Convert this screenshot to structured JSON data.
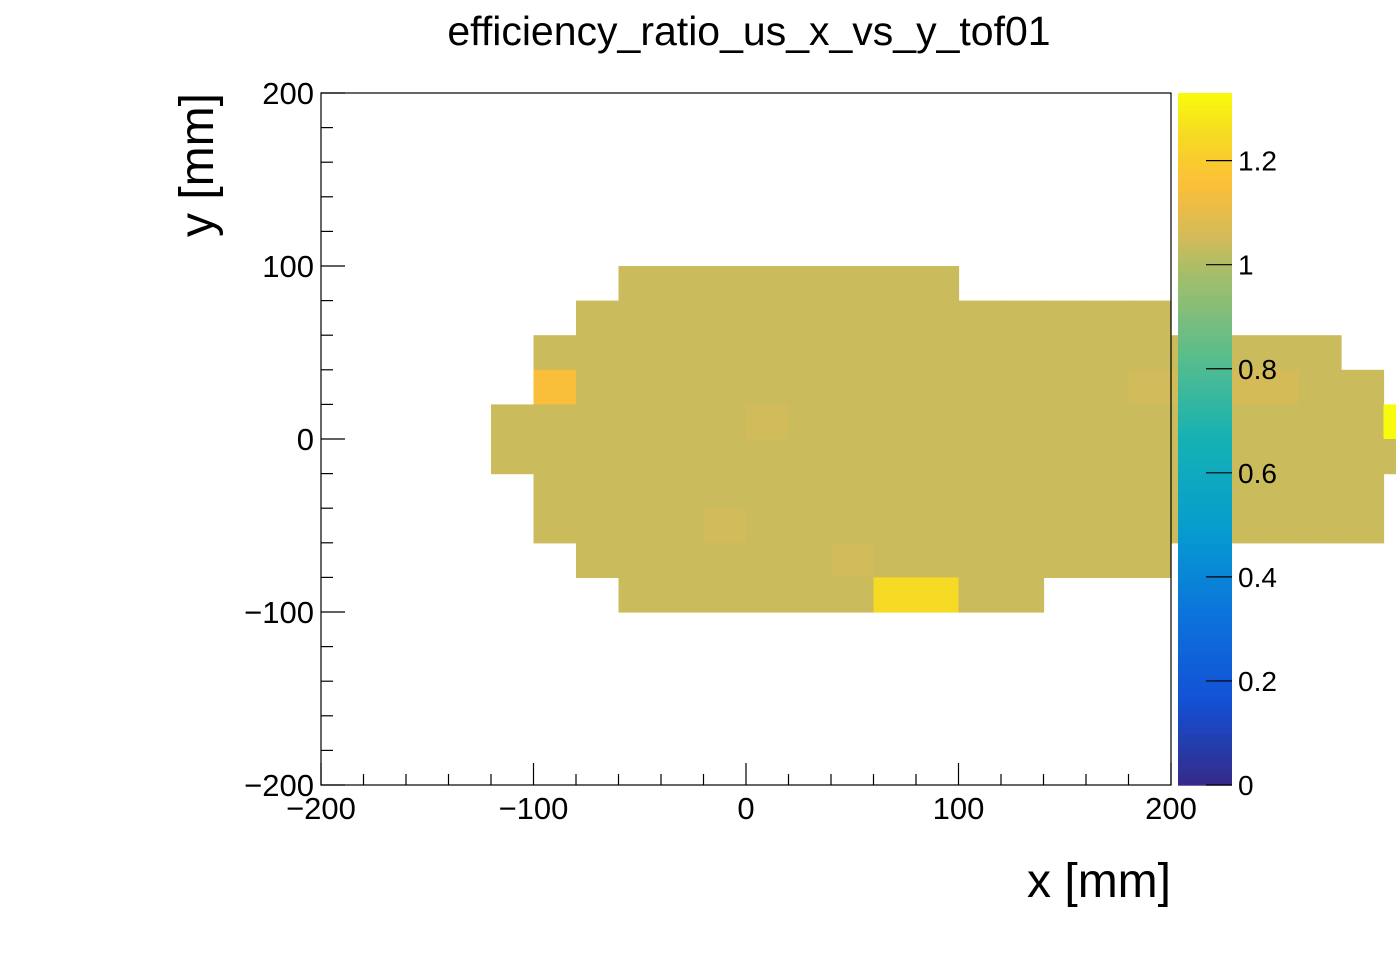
{
  "chart_data": {
    "type": "heatmap",
    "title": "efficiency_ratio_us_x_vs_y_tof01",
    "xlabel": "x [mm]",
    "ylabel": "y [mm]",
    "xlim": [
      -200,
      200
    ],
    "ylim": [
      -200,
      200
    ],
    "bin_width": 20,
    "x_ticks": [
      -200,
      -100,
      0,
      100,
      200
    ],
    "y_ticks": [
      -200,
      -100,
      0,
      100,
      200
    ],
    "x_tick_labels": [
      "−200",
      "−100",
      "0",
      "100",
      "200"
    ],
    "y_tick_labels": [
      "−200",
      "−100",
      "0",
      "100",
      "200"
    ],
    "colorbar": {
      "min": 0,
      "max": 1.33,
      "ticks": [
        0,
        0.2,
        0.4,
        0.6,
        0.8,
        1,
        1.2
      ],
      "tick_labels": [
        "0",
        "0.2",
        "0.4",
        "0.6",
        "0.8",
        "1",
        "1.2"
      ],
      "palette": "kBird"
    },
    "rows": [
      {
        "y_range": [
          80,
          100
        ],
        "x_start": -60,
        "values": [
          1.04,
          1.04,
          1.04,
          1.04,
          1.04,
          1.04,
          1.04,
          1.04
        ]
      },
      {
        "y_range": [
          60,
          80
        ],
        "x_start": -80,
        "values": [
          1.04,
          1.04,
          1.04,
          1.04,
          1.04,
          1.04,
          1.04,
          1.04,
          1.04,
          1.04,
          1.04,
          1.04,
          1.04,
          1.04
        ]
      },
      {
        "y_range": [
          40,
          60
        ],
        "x_start": -100,
        "values": [
          1.04,
          1.04,
          1.04,
          1.04,
          1.04,
          1.04,
          1.04,
          1.04,
          1.04,
          1.04,
          1.04,
          1.04,
          1.04,
          1.04,
          1.04,
          1.04,
          1.04,
          1.04,
          1.04
        ]
      },
      {
        "y_range": [
          20,
          40
        ],
        "x_start": -100,
        "values": [
          1.15,
          1.04,
          1.04,
          1.04,
          1.04,
          1.04,
          1.04,
          1.04,
          1.04,
          1.04,
          1.04,
          1.04,
          1.04,
          1.04,
          1.05,
          1.05,
          1.06,
          1.06,
          1.04,
          1.04
        ]
      },
      {
        "y_range": [
          0,
          20
        ],
        "x_start": -120,
        "values": [
          1.04,
          1.04,
          1.04,
          1.04,
          1.04,
          1.04,
          1.05,
          1.04,
          1.04,
          1.04,
          1.04,
          1.04,
          1.04,
          1.04,
          1.04,
          1.04,
          1.04,
          1.04,
          1.04,
          1.04,
          1.04,
          1.33
        ]
      },
      {
        "y_range": [
          -20,
          0
        ],
        "x_start": -120,
        "values": [
          1.04,
          1.04,
          1.04,
          1.04,
          1.04,
          1.04,
          1.04,
          1.04,
          1.04,
          1.04,
          1.04,
          1.04,
          1.04,
          1.04,
          1.04,
          1.04,
          1.04,
          1.04,
          1.04,
          1.04,
          1.04,
          1.04
        ]
      },
      {
        "y_range": [
          -40,
          -20
        ],
        "x_start": -100,
        "values": [
          1.04,
          1.04,
          1.04,
          1.04,
          1.04,
          1.04,
          1.04,
          1.04,
          1.04,
          1.04,
          1.04,
          1.04,
          1.04,
          1.04,
          1.04,
          1.04,
          1.04,
          1.04,
          1.04,
          1.04
        ]
      },
      {
        "y_range": [
          -60,
          -40
        ],
        "x_start": -100,
        "values": [
          1.04,
          1.04,
          1.04,
          1.04,
          1.05,
          1.04,
          1.04,
          1.04,
          1.04,
          1.04,
          1.04,
          1.04,
          1.04,
          1.04,
          1.04,
          1.04,
          1.04,
          1.04,
          1.04,
          1.04
        ]
      },
      {
        "y_range": [
          -80,
          -60
        ],
        "x_start": -80,
        "values": [
          1.04,
          1.04,
          1.04,
          1.04,
          1.04,
          1.04,
          1.05,
          1.04,
          1.04,
          1.04,
          1.04,
          1.04,
          1.04,
          1.04
        ]
      },
      {
        "y_range": [
          -100,
          -80
        ],
        "x_start": -60,
        "values": [
          1.04,
          1.04,
          1.04,
          1.04,
          1.04,
          1.04,
          1.25,
          1.25,
          1.04,
          1.04
        ]
      }
    ]
  }
}
